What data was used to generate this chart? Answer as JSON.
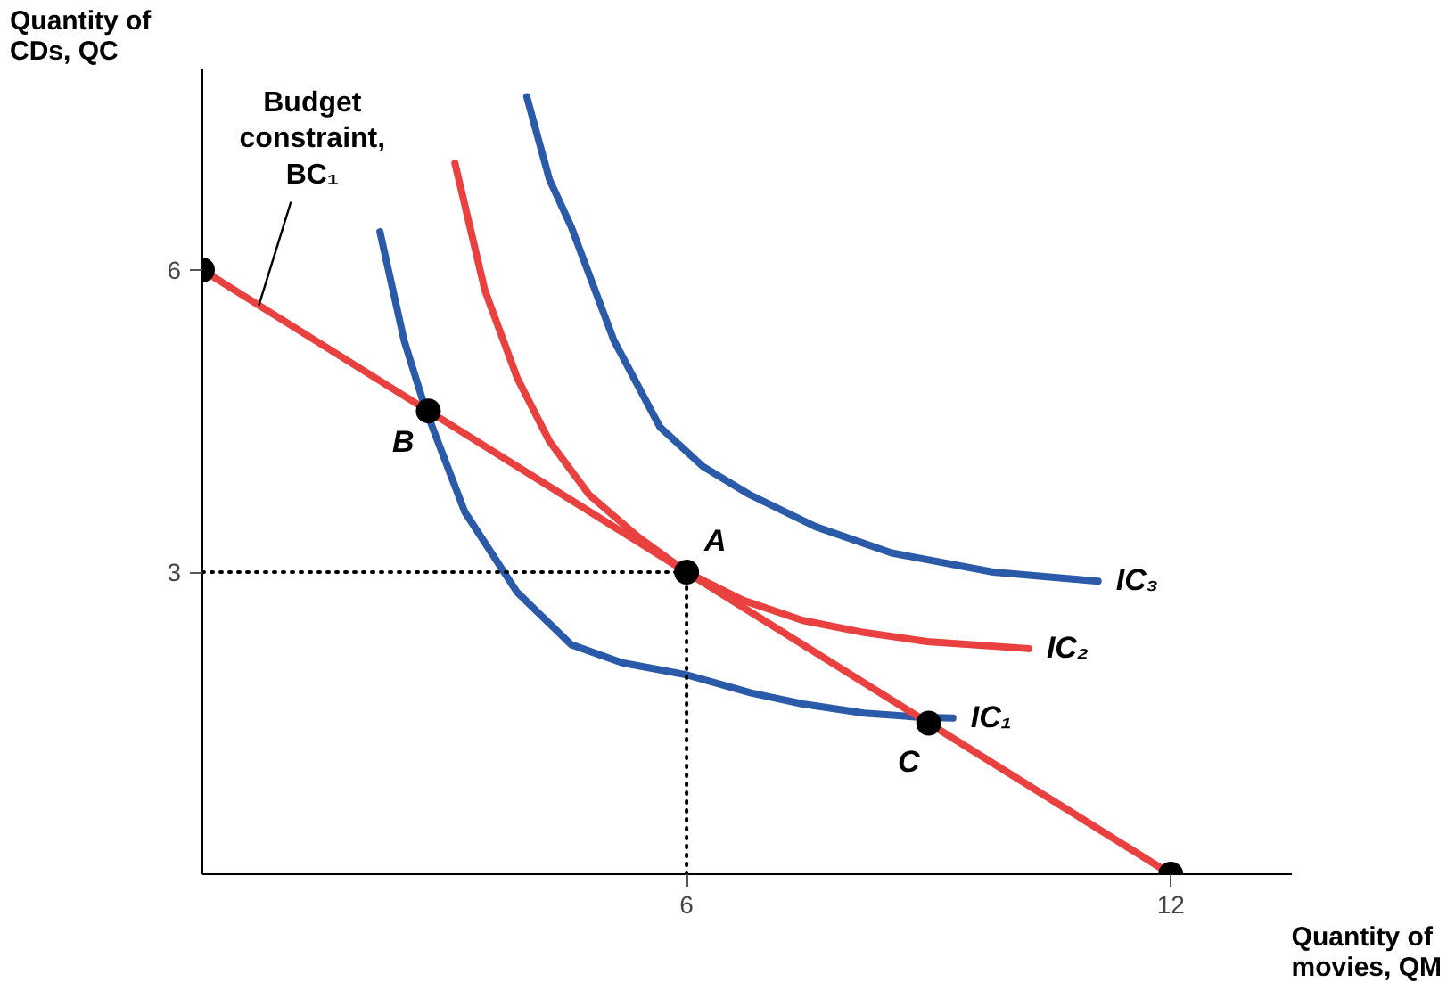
{
  "chart_data": {
    "type": "line",
    "xlabel": "Quantity of movies, QM",
    "ylabel": "Quantity of CDs, QC",
    "xlim": [
      0,
      13.5
    ],
    "ylim": [
      0,
      8
    ],
    "xticks": [
      6,
      12
    ],
    "yticks": [
      3,
      6
    ],
    "grid": false,
    "series": [
      {
        "name": "IC₁",
        "color": "#2b5ba8",
        "x": [
          2.2,
          2.5,
          2.76,
          3.25,
          3.9,
          4.57,
          5.2,
          6,
          6.8,
          7.44,
          8.2,
          8.87,
          9.3
        ],
        "values": [
          6.38,
          5.3,
          4.63,
          3.6,
          2.8,
          2.28,
          2.1,
          1.98,
          1.8,
          1.69,
          1.6,
          1.56,
          1.55
        ]
      },
      {
        "name": "IC₂",
        "color": "#e8413f",
        "x": [
          3.13,
          3.5,
          3.9,
          4.3,
          4.79,
          5.4,
          6,
          6.7,
          7.44,
          8.2,
          8.98,
          10.24
        ],
        "values": [
          7.06,
          5.8,
          4.93,
          4.3,
          3.77,
          3.35,
          3.0,
          2.72,
          2.52,
          2.4,
          2.31,
          2.24
        ]
      },
      {
        "name": "IC₃",
        "color": "#2b5ba8",
        "x": [
          4.02,
          4.3,
          4.57,
          5.1,
          5.67,
          6.2,
          6.78,
          7.6,
          8.54,
          9.8,
          11.1
        ],
        "values": [
          7.72,
          6.9,
          6.43,
          5.3,
          4.44,
          4.05,
          3.77,
          3.45,
          3.19,
          3.0,
          2.91
        ]
      },
      {
        "type": "line",
        "color": "#e8413f",
        "x": [
          0,
          12
        ],
        "values": [
          6,
          0
        ]
      },
      {
        "type": "line",
        "color": "#000000",
        "line_style": "dotted",
        "x": [
          0,
          6,
          6
        ],
        "values": [
          3,
          3,
          0
        ]
      },
      {
        "type": "scatter",
        "color": "#000000",
        "marker": "circle",
        "x": [
          0,
          2.8,
          6,
          9,
          12
        ],
        "values": [
          6,
          4.6,
          3,
          1.5,
          0
        ]
      }
    ],
    "annotations": [
      {
        "text": "Budget constraint, BC₁",
        "x": 0.7,
        "y": 5.65
      },
      {
        "text": "A",
        "x": 6,
        "y": 3
      },
      {
        "text": "B",
        "x": 2.8,
        "y": 4.6
      },
      {
        "text": "C",
        "x": 9,
        "y": 1.5
      }
    ]
  }
}
